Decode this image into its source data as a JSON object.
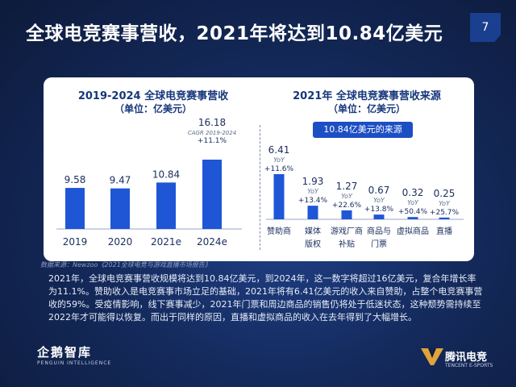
{
  "header": {
    "title": "全球电竞赛事营收，2021年将达到10.84亿美元",
    "page_number": "7"
  },
  "colors": {
    "bar": "#1f56d6",
    "title_text": "#17377c",
    "label_text": "#1c2f60",
    "panel_bg": "#ffffff",
    "page_bg": "#0e1c3d"
  },
  "chart_data": [
    {
      "type": "bar",
      "title": "2019-2024 全球电竞赛事营收",
      "subtitle": "（单位：亿美元）",
      "categories": [
        "2019",
        "2020",
        "2021e",
        "2024e"
      ],
      "values": [
        9.58,
        9.47,
        10.84,
        16.18
      ],
      "annotation": {
        "category": "2024e",
        "lines": [
          "CAGR 2019-2024",
          "+11.1%"
        ]
      },
      "xlabel": "",
      "ylabel": "",
      "ylim": [
        0,
        18
      ],
      "grid": false
    },
    {
      "type": "bar",
      "title": "2021年 全球电竞赛事营收来源",
      "subtitle": "（单位：亿美元）",
      "callout": "10.84亿美元的来源",
      "categories": [
        "赞助商",
        "媒体版权",
        "游戏厂商补贴",
        "商品与门票",
        "虚拟商品",
        "直播"
      ],
      "category_lines": [
        [
          "赞助商"
        ],
        [
          "媒体",
          "版权"
        ],
        [
          "游戏厂商",
          "补贴"
        ],
        [
          "商品与",
          "门票"
        ],
        [
          "虚拟商品"
        ],
        [
          "直播"
        ]
      ],
      "values": [
        6.41,
        1.93,
        1.27,
        0.67,
        0.32,
        0.25
      ],
      "value_labels": [
        "6.41",
        "1.93",
        "1.27",
        "0.67",
        "0.32",
        "0.25"
      ],
      "yoy_label": "YoY",
      "yoy": [
        "+11.6%",
        "+13.4%",
        "+22.6%",
        "+13.8%",
        "+50.4%",
        "+25.7%"
      ],
      "xlabel": "",
      "ylabel": "",
      "ylim": [
        0,
        7
      ],
      "grid": false
    }
  ],
  "source": "数据来源：Newzoo《2021全球电竞与游戏直播市场报告》",
  "body_text": "2021年，全球电竞赛事营收规模将达到10.84亿美元，到2024年，这一数字将超过16亿美元，复合年增长率为11.1%。赞助收入是电竞赛事市场立足的基础，2021年将有6.41亿美元的收入来自赞助，占整个电竞赛事营收的59%。受疫情影响，线下赛事减少，2021年门票和周边商品的销售仍将处于低迷状态，这种颓势需持续至2022年才可能得以恢复。而出于同样的原因，直播和虚拟商品的收入在去年得到了大幅增长。",
  "footer": {
    "left_logo_name": "企鹅智库",
    "left_logo_tag": "PENGUIN INTELLIGENCE",
    "right_logo_name": "腾讯电竞",
    "right_logo_tag": "TENCENT E-SPORTS"
  }
}
